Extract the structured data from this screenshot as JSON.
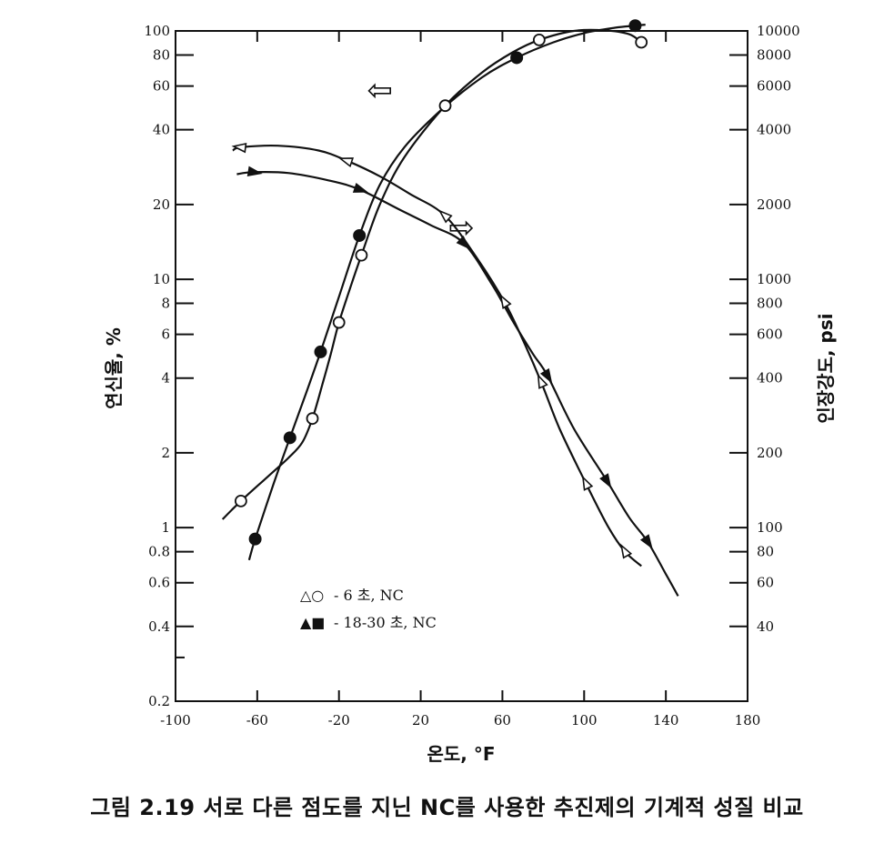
{
  "caption": "그림 2.19  서로 다른 점도를 지닌 NC를 사용한 추진제의 기계적 성질 비교",
  "chart_data": {
    "type": "line",
    "xlabel": "온도, °F",
    "ylabel_left": "연신율, %",
    "ylabel_right": "인장강도, psi",
    "xlim": [
      -100,
      180
    ],
    "xticks": [
      "-100",
      "-60",
      "-20",
      "20",
      "60",
      "100",
      "140",
      "180"
    ],
    "yscale": "log",
    "ylim_left": [
      0.2,
      100
    ],
    "ylim_right": [
      20,
      10000
    ],
    "yticks_left": [
      "0.2",
      "0.4",
      "0.6",
      "0.8",
      "1",
      "2",
      "4",
      "6",
      "8",
      "10",
      "20",
      "40",
      "60",
      "80",
      "100"
    ],
    "yticks_right": [
      "40",
      "60",
      "80",
      "100",
      "200",
      "400",
      "600",
      "800",
      "1000",
      "2000",
      "4000",
      "6000",
      "8000",
      "10000"
    ],
    "legend": [
      {
        "symbols": "△○",
        "label": "- 6 초,  NC"
      },
      {
        "symbols": "▲■",
        "label": "- 18-30 초,  NC"
      }
    ],
    "series": [
      {
        "axis": "left",
        "marker": "open-circle",
        "points": [
          [
            -68,
            1.28
          ],
          [
            -33,
            2.75
          ],
          [
            -20,
            6.7
          ],
          [
            -9,
            12.5
          ],
          [
            32,
            50
          ],
          [
            78,
            92
          ],
          [
            128,
            90
          ]
        ],
        "curve": [
          [
            -77,
            1.08
          ],
          [
            -68,
            1.28
          ],
          [
            -55,
            1.6
          ],
          [
            -45,
            1.9
          ],
          [
            -38,
            2.2
          ],
          [
            -33,
            2.75
          ],
          [
            -28,
            3.8
          ],
          [
            -24,
            5.0
          ],
          [
            -20,
            6.7
          ],
          [
            -14,
            9.5
          ],
          [
            -9,
            12.5
          ],
          [
            0,
            20
          ],
          [
            12,
            31
          ],
          [
            32,
            50
          ],
          [
            50,
            68
          ],
          [
            65,
            82
          ],
          [
            78,
            92
          ],
          [
            95,
            100
          ],
          [
            110,
            100.5
          ],
          [
            122,
            97
          ],
          [
            128,
            90
          ]
        ]
      },
      {
        "axis": "left",
        "marker": "filled-circle",
        "points": [
          [
            -61,
            0.9
          ],
          [
            -44,
            2.3
          ],
          [
            -29,
            5.1
          ],
          [
            -10,
            15
          ],
          [
            67,
            78
          ],
          [
            125,
            105
          ]
        ],
        "curve": [
          [
            -64,
            0.74
          ],
          [
            -61,
            0.9
          ],
          [
            -52,
            1.5
          ],
          [
            -44,
            2.3
          ],
          [
            -36,
            3.5
          ],
          [
            -29,
            5.1
          ],
          [
            -20,
            8.5
          ],
          [
            -10,
            15
          ],
          [
            0,
            24
          ],
          [
            12,
            34
          ],
          [
            30,
            48
          ],
          [
            50,
            65
          ],
          [
            67,
            78
          ],
          [
            85,
            90
          ],
          [
            100,
            98
          ],
          [
            115,
            103
          ],
          [
            125,
            105
          ],
          [
            130,
            106
          ]
        ]
      },
      {
        "axis": "right",
        "marker": "open-triangle",
        "points": [
          [
            -68,
            3400
          ],
          [
            -16,
            3000
          ],
          [
            32,
            1800
          ],
          [
            61,
            810
          ],
          [
            79,
            385
          ],
          [
            101,
            150
          ],
          [
            120,
            80
          ]
        ],
        "curve": [
          [
            -72,
            3300
          ],
          [
            -68,
            3400
          ],
          [
            -50,
            3450
          ],
          [
            -30,
            3300
          ],
          [
            -16,
            3000
          ],
          [
            0,
            2600
          ],
          [
            15,
            2200
          ],
          [
            32,
            1800
          ],
          [
            48,
            1200
          ],
          [
            61,
            810
          ],
          [
            70,
            570
          ],
          [
            79,
            385
          ],
          [
            88,
            250
          ],
          [
            101,
            150
          ],
          [
            112,
            100
          ],
          [
            120,
            80
          ],
          [
            128,
            70
          ]
        ]
      },
      {
        "axis": "right",
        "marker": "filled-triangle",
        "points": [
          [
            -62,
            2700
          ],
          [
            -10,
            2300
          ],
          [
            41,
            1400
          ],
          [
            82,
            410
          ],
          [
            111,
            155
          ],
          [
            131,
            88
          ]
        ],
        "curve": [
          [
            -70,
            2650
          ],
          [
            -62,
            2700
          ],
          [
            -45,
            2680
          ],
          [
            -25,
            2500
          ],
          [
            -10,
            2300
          ],
          [
            10,
            1900
          ],
          [
            25,
            1650
          ],
          [
            41,
            1400
          ],
          [
            55,
            950
          ],
          [
            65,
            680
          ],
          [
            75,
            500
          ],
          [
            82,
            410
          ],
          [
            95,
            250
          ],
          [
            111,
            155
          ],
          [
            122,
            110
          ],
          [
            131,
            88
          ],
          [
            140,
            65
          ],
          [
            146,
            53
          ]
        ]
      }
    ],
    "annotations": [
      {
        "name": "left-arrow-symbol",
        "symbol": "⇦",
        "x": 0,
        "y_left": 57
      },
      {
        "name": "right-arrow-symbol",
        "symbol": "⇨",
        "x": 40,
        "y_left": 16
      }
    ]
  }
}
